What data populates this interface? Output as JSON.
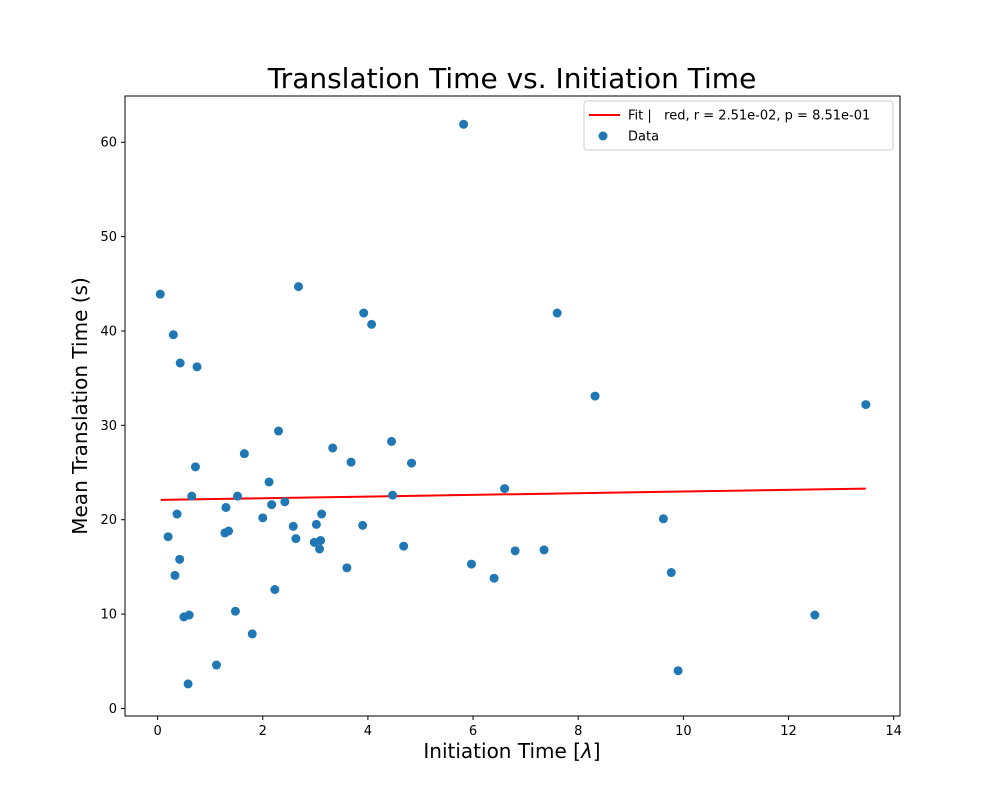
{
  "chart_data": {
    "type": "scatter",
    "title": "Translation Time vs. Initiation Time",
    "xlabel_main": "Initiation Time [",
    "xlabel_symbol": "λ",
    "xlabel_close": "]",
    "ylabel": "Mean Translation Time (s)",
    "xlim": [
      -0.62,
      14.12
    ],
    "ylim": [
      -0.8,
      64.9
    ],
    "xticks": [
      0,
      2,
      4,
      6,
      8,
      10,
      12,
      14
    ],
    "xtick_labels": [
      "0",
      "2",
      "4",
      "6",
      "8",
      "10",
      "12",
      "14"
    ],
    "yticks": [
      0,
      10,
      20,
      30,
      40,
      50,
      60
    ],
    "ytick_labels": [
      "0",
      "10",
      "20",
      "30",
      "40",
      "50",
      "60"
    ],
    "grid": false,
    "legend_position": "top-right",
    "series": [
      {
        "name": "Fit |   red, r = 2.51e-02, p = 8.51e-01",
        "kind": "line",
        "color": "#ff0000",
        "x": [
          0.06,
          13.47
        ],
        "y": [
          22.1,
          23.3
        ]
      },
      {
        "name": "Data",
        "kind": "scatter",
        "color": "#1f77b4",
        "points": [
          [
            0.05,
            43.9
          ],
          [
            0.2,
            18.2
          ],
          [
            0.3,
            39.6
          ],
          [
            0.33,
            14.1
          ],
          [
            0.37,
            20.6
          ],
          [
            0.42,
            15.8
          ],
          [
            0.43,
            36.6
          ],
          [
            0.5,
            9.7
          ],
          [
            0.58,
            2.6
          ],
          [
            0.6,
            9.9
          ],
          [
            0.65,
            22.5
          ],
          [
            0.72,
            25.6
          ],
          [
            0.75,
            36.2
          ],
          [
            1.12,
            4.6
          ],
          [
            1.28,
            18.6
          ],
          [
            1.3,
            21.3
          ],
          [
            1.35,
            18.8
          ],
          [
            1.48,
            10.3
          ],
          [
            1.52,
            22.5
          ],
          [
            1.65,
            27.0
          ],
          [
            1.8,
            7.9
          ],
          [
            2.0,
            20.2
          ],
          [
            2.12,
            24.0
          ],
          [
            2.17,
            21.6
          ],
          [
            2.23,
            12.6
          ],
          [
            2.3,
            29.4
          ],
          [
            2.42,
            21.9
          ],
          [
            2.58,
            19.3
          ],
          [
            2.63,
            18.0
          ],
          [
            2.68,
            44.7
          ],
          [
            2.98,
            17.6
          ],
          [
            3.02,
            19.5
          ],
          [
            3.08,
            16.9
          ],
          [
            3.1,
            17.8
          ],
          [
            3.12,
            20.6
          ],
          [
            3.33,
            27.6
          ],
          [
            3.6,
            14.9
          ],
          [
            3.68,
            26.1
          ],
          [
            3.9,
            19.4
          ],
          [
            3.92,
            41.9
          ],
          [
            4.07,
            40.7
          ],
          [
            4.45,
            28.3
          ],
          [
            4.47,
            22.6
          ],
          [
            4.68,
            17.2
          ],
          [
            4.83,
            26.0
          ],
          [
            5.82,
            61.9
          ],
          [
            5.97,
            15.3
          ],
          [
            6.4,
            13.8
          ],
          [
            6.6,
            23.3
          ],
          [
            6.8,
            16.7
          ],
          [
            7.35,
            16.8
          ],
          [
            7.6,
            41.9
          ],
          [
            8.32,
            33.1
          ],
          [
            9.62,
            20.1
          ],
          [
            9.77,
            14.4
          ],
          [
            9.9,
            4.0
          ],
          [
            12.5,
            9.9
          ],
          [
            13.47,
            32.2
          ]
        ]
      }
    ]
  }
}
